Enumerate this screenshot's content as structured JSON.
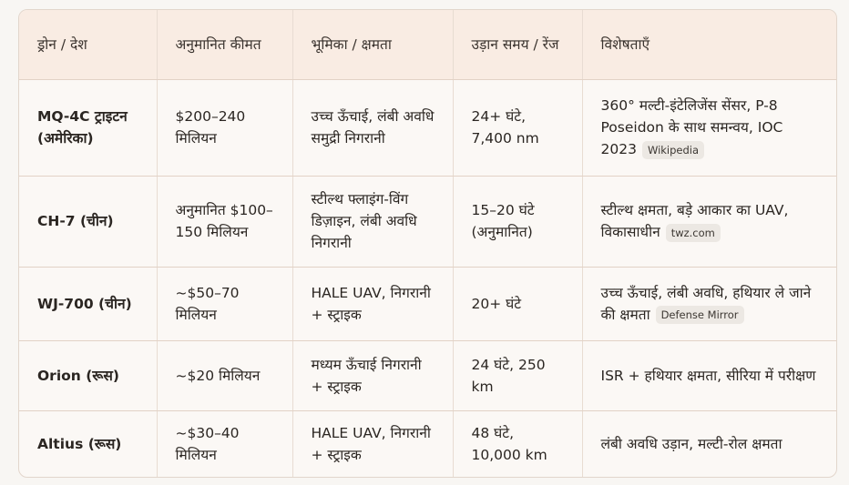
{
  "headers": [
    "ड्रोन / देश",
    "अनुमानित कीमत",
    "भूमिका / क्षमता",
    "उड़ान समय / रेंज",
    "विशेषताएँ"
  ],
  "rows": [
    {
      "name": "MQ-4C ट्राइटन (अमेरिका)",
      "price": "$200–240 मिलियन",
      "role": "उच्च ऊँचाई, लंबी अवधि समुद्री निगरानी",
      "flight": "24+ घंटे, 7,400 nm",
      "features": "360° मल्टी-इंटेलिजेंस सेंसर, P-8 Poseidon के साथ समन्वय, IOC 2023",
      "source": "Wikipedia"
    },
    {
      "name": "CH-7 (चीन)",
      "price": "अनुमानित $100–150 मिलियन",
      "role": "स्टील्थ फ्लाइंग-विंग डिज़ाइन, लंबी अवधि निगरानी",
      "flight": "15–20 घंटे (अनुमानित)",
      "features": "स्टील्थ क्षमता, बड़े आकार का UAV, विकासाधीन",
      "source": "twz.com"
    },
    {
      "name": "WJ-700 (चीन)",
      "price": "~$50–70 मिलियन",
      "role": "HALE UAV, निगरानी + स्ट्राइक",
      "flight": "20+ घंटे",
      "features": "उच्च ऊँचाई, लंबी अवधि, हथियार ले जाने की क्षमता",
      "source": "Defense Mirror"
    },
    {
      "name": "Orion (रूस)",
      "price": "~$20 मिलियन",
      "role": "मध्यम ऊँचाई निगरानी + स्ट्राइक",
      "flight": "24 घंटे, 250 km",
      "features": "ISR + हथियार क्षमता, सीरिया में परीक्षण",
      "source": null
    },
    {
      "name": "Altius (रूस)",
      "price": "~$30–40 मिलियन",
      "role": "HALE UAV, निगरानी + स्ट्राइक",
      "flight": "48 घंटे, 10,000 km",
      "features": "लंबी अवधि उड़ान, मल्टी-रोल क्षमता",
      "source": null
    }
  ]
}
